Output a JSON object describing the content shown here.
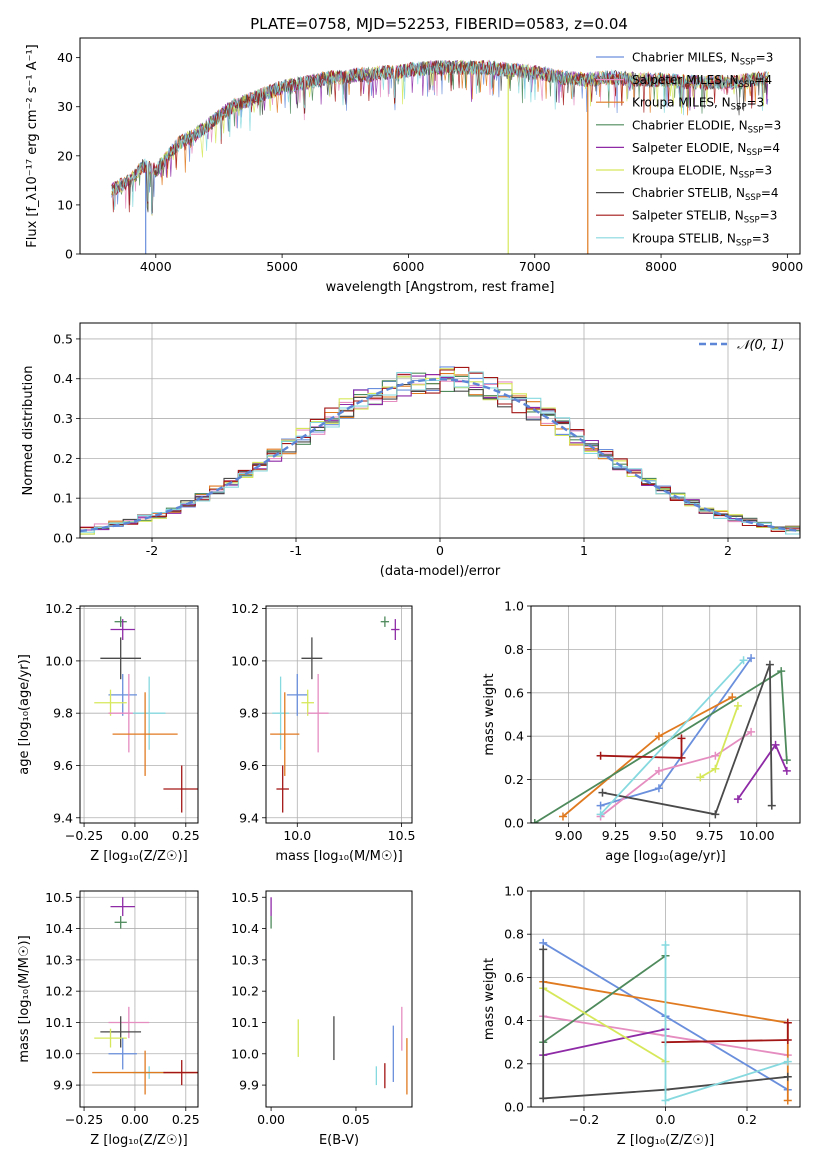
{
  "title": "PLATE=0758, MJD=52253, FIBERID=0583, z=0.04",
  "colors": {
    "Chabrier MILES": "#6a8fdc",
    "Salpeter MILES": "#e58dc0",
    "Kroupa MILES": "#e07a20",
    "Chabrier ELODIE": "#4e8a5c",
    "Salpeter ELODIE": "#8e2aa6",
    "Kroupa ELODIE": "#d6e85a",
    "Chabrier STELIB": "#4a4a4a",
    "Salpeter STELIB": "#a31616",
    "Kroupa STELIB": "#86d9df"
  },
  "chart_data": [
    {
      "id": "spectrum",
      "type": "line",
      "xlabel": "wavelength [Angstrom, rest frame]",
      "ylabel": "Flux [f_λ10⁻¹⁷ erg cm⁻² s⁻¹ A⁻¹]",
      "xlim": [
        3400,
        9100
      ],
      "ylim": [
        0,
        44
      ],
      "xticks": [
        4000,
        5000,
        6000,
        7000,
        8000,
        9000
      ],
      "yticks": [
        0,
        10,
        20,
        30,
        40
      ],
      "legend_location": "right",
      "legend": [
        "Chabrier MILES, N_SSP=3",
        "Salpeter MILES, N_SSP=4",
        "Kroupa MILES, N_SSP=3",
        "Chabrier ELODIE, N_SSP=3",
        "Salpeter ELODIE, N_SSP=4",
        "Kroupa ELODIE, N_SSP=3",
        "Chabrier STELIB, N_SSP=4",
        "Salpeter STELIB, N_SSP=3",
        "Kroupa STELIB, N_SSP=3"
      ],
      "continuum": {
        "x": [
          3650,
          3800,
          3900,
          4000,
          4100,
          4200,
          4300,
          4400,
          4500,
          4600,
          4700,
          4800,
          4900,
          5000,
          5100,
          5200,
          5300,
          5400,
          5500,
          5600,
          5700,
          5800,
          5900,
          6000,
          6200,
          6400,
          6600,
          6800,
          7000,
          7200,
          7400,
          7600,
          7800,
          8000,
          8200,
          8400,
          8600,
          8850
        ],
        "y": [
          13,
          15,
          18,
          17,
          20,
          23,
          24,
          26,
          28,
          30,
          31,
          32,
          33,
          34,
          34.5,
          35,
          35.5,
          36,
          36,
          36.5,
          36.5,
          37,
          37,
          37.5,
          38,
          38,
          38,
          37.5,
          37,
          36,
          35.5,
          36,
          35.5,
          35.5,
          35,
          35,
          35,
          36
        ]
      },
      "dips": [
        {
          "series": "Chabrier MILES",
          "x": 3920,
          "to": 0
        },
        {
          "series": "Kroupa ELODIE",
          "x": 6790,
          "to": 0
        },
        {
          "series": "Kroupa MILES",
          "x": 7420,
          "to": 0
        }
      ]
    },
    {
      "id": "residuals",
      "type": "step",
      "xlabel": "(data-model)/error",
      "ylabel": "Normed distribution",
      "xlim": [
        -2.5,
        2.5
      ],
      "ylim": [
        0,
        0.54
      ],
      "xticks": [
        -2,
        -1,
        0,
        1,
        2
      ],
      "yticks": [
        0.0,
        0.1,
        0.2,
        0.3,
        0.4,
        0.5
      ],
      "grid": true,
      "legend_location": "top-right",
      "reference_label": "𝒩(0, 1)",
      "reference": "gaussian mean 0, sigma 1",
      "bin_width": 0.1
    },
    {
      "id": "age-vs-Z",
      "type": "errorbar",
      "xlabel": "Z [log₁₀(Z/Z☉)]",
      "ylabel": "age  [log₁₀(age/yr)]",
      "xlim": [
        -0.27,
        0.31
      ],
      "ylim": [
        9.38,
        10.21
      ],
      "xticks": [
        -0.25,
        0.0,
        0.25
      ],
      "xticklabels": [
        "−0.25",
        "0.00",
        "0.25"
      ],
      "yticks": [
        9.4,
        9.6,
        9.8,
        10.0,
        10.2
      ],
      "grid": true,
      "points": [
        {
          "series": "Chabrier ELODIE",
          "x": -0.07,
          "y": 10.15,
          "xerr": 0.03,
          "yerr": 0.02
        },
        {
          "series": "Salpeter ELODIE",
          "x": -0.06,
          "y": 10.12,
          "xerr": 0.06,
          "yerr": 0.04
        },
        {
          "series": "Chabrier STELIB",
          "x": -0.07,
          "y": 10.01,
          "xerr": 0.1,
          "yerr": 0.08
        },
        {
          "series": "Chabrier MILES",
          "x": -0.06,
          "y": 9.87,
          "xerr": 0.07,
          "yerr": 0.08
        },
        {
          "series": "Kroupa ELODIE",
          "x": -0.12,
          "y": 9.84,
          "xerr": 0.08,
          "yerr": 0.05
        },
        {
          "series": "Salpeter MILES",
          "x": -0.03,
          "y": 9.8,
          "xerr": 0.1,
          "yerr": 0.15
        },
        {
          "series": "Kroupa STELIB",
          "x": 0.07,
          "y": 9.8,
          "xerr": 0.08,
          "yerr": 0.14
        },
        {
          "series": "Kroupa MILES",
          "x": 0.05,
          "y": 9.72,
          "xerr": 0.16,
          "yerr": 0.16
        },
        {
          "series": "Salpeter STELIB",
          "x": 0.23,
          "y": 9.51,
          "xerr": 0.09,
          "yerr": 0.09
        }
      ]
    },
    {
      "id": "age-vs-mass",
      "type": "errorbar",
      "xlabel": "mass [log₁₀(M/M☉)]",
      "ylabel": "",
      "xlim": [
        9.85,
        10.55
      ],
      "ylim": [
        9.38,
        10.21
      ],
      "xticks": [
        10.0,
        10.5
      ],
      "xticklabels": [
        "10.0",
        "10.5"
      ],
      "yticks": [
        9.4,
        9.6,
        9.8,
        10.0,
        10.2
      ],
      "grid": true,
      "points": [
        {
          "series": "Chabrier ELODIE",
          "x": 10.42,
          "y": 10.15,
          "xerr": 0.02,
          "yerr": 0.02
        },
        {
          "series": "Salpeter ELODIE",
          "x": 10.47,
          "y": 10.12,
          "xerr": 0.02,
          "yerr": 0.04
        },
        {
          "series": "Chabrier STELIB",
          "x": 10.07,
          "y": 10.01,
          "xerr": 0.05,
          "yerr": 0.08
        },
        {
          "series": "Chabrier MILES",
          "x": 10.0,
          "y": 9.87,
          "xerr": 0.05,
          "yerr": 0.08
        },
        {
          "series": "Kroupa ELODIE",
          "x": 10.05,
          "y": 9.84,
          "xerr": 0.03,
          "yerr": 0.05
        },
        {
          "series": "Salpeter MILES",
          "x": 10.1,
          "y": 9.8,
          "xerr": 0.05,
          "yerr": 0.15
        },
        {
          "series": "Kroupa STELIB",
          "x": 9.92,
          "y": 9.8,
          "xerr": 0.04,
          "yerr": 0.14
        },
        {
          "series": "Kroupa MILES",
          "x": 9.94,
          "y": 9.72,
          "xerr": 0.07,
          "yerr": 0.16
        },
        {
          "series": "Salpeter STELIB",
          "x": 9.93,
          "y": 9.51,
          "xerr": 0.03,
          "yerr": 0.09
        }
      ]
    },
    {
      "id": "weight-vs-age",
      "type": "line",
      "xlabel": "age  [log₁₀(age/yr)]",
      "ylabel": "mass weight",
      "xlim": [
        8.8,
        10.23
      ],
      "ylim": [
        0,
        1
      ],
      "xticks": [
        9.0,
        9.25,
        9.5,
        9.75,
        10.0
      ],
      "xticklabels": [
        "9.00",
        "9.25",
        "9.50",
        "9.75",
        "10.00"
      ],
      "yticks": [
        0,
        0.2,
        0.4,
        0.6,
        0.8,
        1.0
      ],
      "yticklabels": [
        "0.0",
        "0.2",
        "0.4",
        "0.6",
        "0.8",
        "1.0"
      ],
      "grid": true,
      "series": [
        {
          "name": "Chabrier MILES",
          "x": [
            9.17,
            9.48,
            9.97
          ],
          "y": [
            0.08,
            0.16,
            0.76
          ]
        },
        {
          "name": "Salpeter MILES",
          "x": [
            9.17,
            9.48,
            9.78,
            9.97
          ],
          "y": [
            0.03,
            0.24,
            0.31,
            0.42
          ]
        },
        {
          "name": "Kroupa MILES",
          "x": [
            8.97,
            9.48,
            9.87
          ],
          "y": [
            0.03,
            0.4,
            0.58
          ]
        },
        {
          "name": "Chabrier ELODIE",
          "x": [
            8.82,
            10.13,
            10.16
          ],
          "y": [
            0.0,
            0.7,
            0.29
          ]
        },
        {
          "name": "Salpeter ELODIE",
          "x": [
            9.9,
            10.1,
            10.16
          ],
          "y": [
            0.11,
            0.36,
            0.24
          ]
        },
        {
          "name": "Kroupa ELODIE",
          "x": [
            9.7,
            9.78,
            9.9
          ],
          "y": [
            0.21,
            0.25,
            0.54
          ]
        },
        {
          "name": "Chabrier STELIB",
          "x": [
            9.18,
            9.78,
            10.07,
            10.08
          ],
          "y": [
            0.14,
            0.04,
            0.73,
            0.08
          ]
        },
        {
          "name": "Salpeter STELIB",
          "x": [
            9.17,
            9.6,
            9.6
          ],
          "y": [
            0.31,
            0.3,
            0.39
          ]
        },
        {
          "name": "Kroupa STELIB",
          "x": [
            9.17,
            9.93
          ],
          "y": [
            0.04,
            0.75
          ]
        }
      ]
    },
    {
      "id": "mass-vs-Z",
      "type": "errorbar",
      "xlabel": "Z [log₁₀(Z/Z☉)]",
      "ylabel": "mass [log₁₀(M/M☉)]",
      "xlim": [
        -0.27,
        0.31
      ],
      "ylim": [
        9.83,
        10.52
      ],
      "xticks": [
        -0.25,
        0.0,
        0.25
      ],
      "xticklabels": [
        "−0.25",
        "0.00",
        "0.25"
      ],
      "yticks": [
        9.9,
        10.0,
        10.1,
        10.2,
        10.3,
        10.4,
        10.5
      ],
      "grid": true,
      "points": [
        {
          "series": "Salpeter ELODIE",
          "x": -0.06,
          "y": 10.47,
          "xerr": 0.06,
          "yerr": 0.03
        },
        {
          "series": "Chabrier ELODIE",
          "x": -0.07,
          "y": 10.42,
          "xerr": 0.03,
          "yerr": 0.02
        },
        {
          "series": "Salpeter MILES",
          "x": -0.03,
          "y": 10.1,
          "xerr": 0.1,
          "yerr": 0.05
        },
        {
          "series": "Chabrier STELIB",
          "x": -0.07,
          "y": 10.07,
          "xerr": 0.1,
          "yerr": 0.05
        },
        {
          "series": "Kroupa ELODIE",
          "x": -0.12,
          "y": 10.05,
          "xerr": 0.08,
          "yerr": 0.03
        },
        {
          "series": "Chabrier MILES",
          "x": -0.06,
          "y": 10.0,
          "xerr": 0.07,
          "yerr": 0.05
        },
        {
          "series": "Kroupa STELIB",
          "x": 0.07,
          "y": 9.94,
          "xerr": 0.08,
          "yerr": 0.02
        },
        {
          "series": "Kroupa MILES",
          "x": 0.05,
          "y": 9.94,
          "xerr": 0.26,
          "yerr": 0.07
        },
        {
          "series": "Salpeter STELIB",
          "x": 0.23,
          "y": 9.94,
          "xerr": 0.09,
          "yerr": 0.04
        }
      ]
    },
    {
      "id": "mass-vs-ebv",
      "type": "errorbar",
      "xlabel": "E(B-V)",
      "ylabel": "",
      "xlim": [
        -0.003,
        0.083
      ],
      "ylim": [
        9.83,
        10.52
      ],
      "xticks": [
        0.0,
        0.05
      ],
      "xticklabels": [
        "0.00",
        "0.05"
      ],
      "yticks": [
        9.9,
        10.0,
        10.1,
        10.2,
        10.3,
        10.4,
        10.5
      ],
      "grid": false,
      "points": [
        {
          "series": "Salpeter ELODIE",
          "x": 0.0,
          "y": 10.47,
          "xerr": 0,
          "yerr": 0.03
        },
        {
          "series": "Chabrier ELODIE",
          "x": 0.0,
          "y": 10.42,
          "xerr": 0,
          "yerr": 0.02
        },
        {
          "series": "Kroupa ELODIE",
          "x": 0.016,
          "y": 10.05,
          "xerr": 0,
          "yerr": 0.06
        },
        {
          "series": "Chabrier STELIB",
          "x": 0.037,
          "y": 10.05,
          "xerr": 0,
          "yerr": 0.07
        },
        {
          "series": "Kroupa STELIB",
          "x": 0.062,
          "y": 9.93,
          "xerr": 0,
          "yerr": 0.03
        },
        {
          "series": "Salpeter STELIB",
          "x": 0.067,
          "y": 9.93,
          "xerr": 0,
          "yerr": 0.04
        },
        {
          "series": "Chabrier MILES",
          "x": 0.072,
          "y": 10.0,
          "xerr": 0,
          "yerr": 0.09
        },
        {
          "series": "Salpeter MILES",
          "x": 0.077,
          "y": 10.08,
          "xerr": 0,
          "yerr": 0.07
        },
        {
          "series": "Kroupa MILES",
          "x": 0.08,
          "y": 9.96,
          "xerr": 0,
          "yerr": 0.09
        }
      ]
    },
    {
      "id": "weight-vs-Z",
      "type": "line",
      "xlabel": "Z [log₁₀(Z/Z☉)]",
      "ylabel": "mass weight",
      "xlim": [
        -0.33,
        0.33
      ],
      "ylim": [
        0,
        1
      ],
      "xticks": [
        -0.2,
        0.0,
        0.2
      ],
      "xticklabels": [
        "−0.2",
        "0.0",
        "0.2"
      ],
      "yticks": [
        0,
        0.2,
        0.4,
        0.6,
        0.8,
        1.0
      ],
      "yticklabels": [
        "0.0",
        "0.2",
        "0.4",
        "0.6",
        "0.8",
        "1.0"
      ],
      "grid": true,
      "series": [
        {
          "name": "Chabrier MILES",
          "x": [
            -0.3,
            0.0,
            0.3
          ],
          "y": [
            0.76,
            0.42,
            0.08
          ]
        },
        {
          "name": "Salpeter MILES",
          "x": [
            -0.3,
            0.0,
            0.3
          ],
          "y": [
            0.42,
            0.33,
            0.24
          ]
        },
        {
          "name": "Kroupa MILES",
          "x": [
            -0.3,
            0.3,
            0.3
          ],
          "y": [
            0.58,
            0.39,
            0.03
          ]
        },
        {
          "name": "Chabrier ELODIE",
          "x": [
            -0.3,
            0.0
          ],
          "y": [
            0.3,
            0.7
          ]
        },
        {
          "name": "Salpeter ELODIE",
          "x": [
            -0.3,
            0.0
          ],
          "y": [
            0.24,
            0.36
          ]
        },
        {
          "name": "Kroupa ELODIE",
          "x": [
            -0.3,
            0.0
          ],
          "y": [
            0.55,
            0.21
          ]
        },
        {
          "name": "Chabrier STELIB",
          "x": [
            -0.3,
            -0.3,
            0.0,
            0.3
          ],
          "y": [
            0.73,
            0.04,
            0.08,
            0.14
          ]
        },
        {
          "name": "Salpeter STELIB",
          "x": [
            0.0,
            0.3,
            0.3
          ],
          "y": [
            0.3,
            0.31,
            0.39
          ]
        },
        {
          "name": "Kroupa STELIB",
          "x": [
            0.0,
            0.0,
            0.3
          ],
          "y": [
            0.75,
            0.03,
            0.21
          ]
        }
      ]
    }
  ]
}
